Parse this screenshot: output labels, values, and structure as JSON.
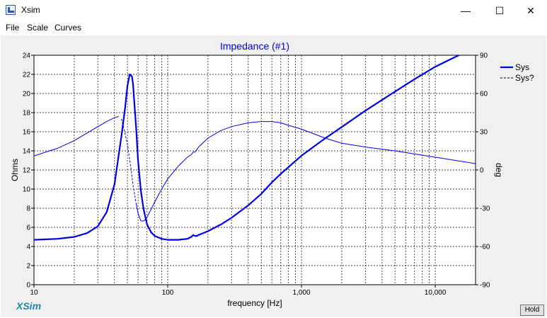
{
  "window": {
    "title": "Xsim",
    "minimize_icon": "minimize-icon",
    "maximize_icon": "maximize-icon",
    "close_icon": "close-icon",
    "minimize_glyph": "—",
    "maximize_glyph": "☐",
    "close_glyph": "✕"
  },
  "menu": [
    "File",
    "Scale",
    "Curves"
  ],
  "brand": "XSim",
  "hold_label": "Hold",
  "colors": {
    "plot_bg": "#ffffff",
    "grid": "#000000",
    "series": "#0000e6",
    "title": "#0000e6",
    "panel": "#f0f0f0"
  },
  "chart_data": {
    "type": "line",
    "title": "Impedance (#1)",
    "xlabel": "frequency [Hz]",
    "ylabel": "Ohms",
    "y2label": "deg",
    "xscale": "log",
    "xlim": [
      10,
      20000
    ],
    "ylim": [
      0,
      24
    ],
    "y2lim": [
      -90,
      90
    ],
    "xticks": [
      10,
      100,
      1000,
      10000
    ],
    "xtick_labels": [
      "10",
      "100",
      "1,000",
      "10,000"
    ],
    "yticks": [
      0,
      2,
      4,
      6,
      8,
      10,
      12,
      14,
      16,
      18,
      20,
      22,
      24
    ],
    "y2ticks": [
      -90,
      -60,
      -30,
      0,
      30,
      60,
      90
    ],
    "grid": true,
    "legend_position": "right",
    "legend": [
      "Sys",
      "Sys?"
    ],
    "series": [
      {
        "name": "Sys",
        "axis": "left",
        "style": "solid-thick",
        "x": [
          10,
          15,
          20,
          25,
          30,
          35,
          40,
          45,
          48,
          50,
          52,
          54,
          55,
          56,
          58,
          60,
          63,
          66,
          70,
          75,
          80,
          90,
          100,
          120,
          140,
          150,
          155,
          160,
          165,
          170,
          200,
          250,
          300,
          400,
          500,
          600,
          700,
          800,
          1000,
          1500,
          2000,
          3000,
          5000,
          7000,
          10000,
          15000,
          20000
        ],
        "y": [
          4.7,
          4.8,
          5.0,
          5.4,
          6.1,
          7.6,
          10.5,
          15.5,
          18.5,
          20.8,
          22.0,
          21.8,
          21.0,
          19.5,
          16.5,
          13.0,
          9.8,
          7.9,
          6.3,
          5.5,
          5.1,
          4.8,
          4.7,
          4.7,
          4.8,
          5.0,
          5.2,
          5.1,
          5.1,
          5.2,
          5.6,
          6.3,
          7.0,
          8.3,
          9.5,
          10.7,
          11.6,
          12.3,
          13.5,
          15.3,
          16.5,
          18.2,
          20.2,
          21.5,
          22.8,
          24.0,
          24.8
        ]
      },
      {
        "name": "Sys?",
        "axis": "right",
        "style": "thin",
        "dashed_range_hz": [
          44,
          58
        ],
        "x": [
          10,
          15,
          20,
          30,
          35,
          40,
          43,
          45,
          47,
          50,
          53,
          55,
          58,
          60,
          63,
          66,
          68,
          70,
          75,
          80,
          90,
          100,
          120,
          140,
          150,
          155,
          160,
          170,
          200,
          250,
          300,
          400,
          500,
          600,
          700,
          800,
          1000,
          1500,
          2000,
          3000,
          5000,
          10000,
          20000
        ],
        "y": [
          11,
          17,
          23,
          34,
          38,
          41,
          42,
          40,
          33,
          20,
          2,
          -12,
          -26,
          -34,
          -40,
          -40,
          -39,
          -37,
          -31,
          -25,
          -15,
          -7,
          3,
          10,
          12,
          14,
          14,
          18,
          25,
          31,
          34,
          37,
          38,
          38,
          37,
          35,
          32,
          25,
          21,
          18,
          15,
          10,
          5
        ]
      }
    ]
  }
}
